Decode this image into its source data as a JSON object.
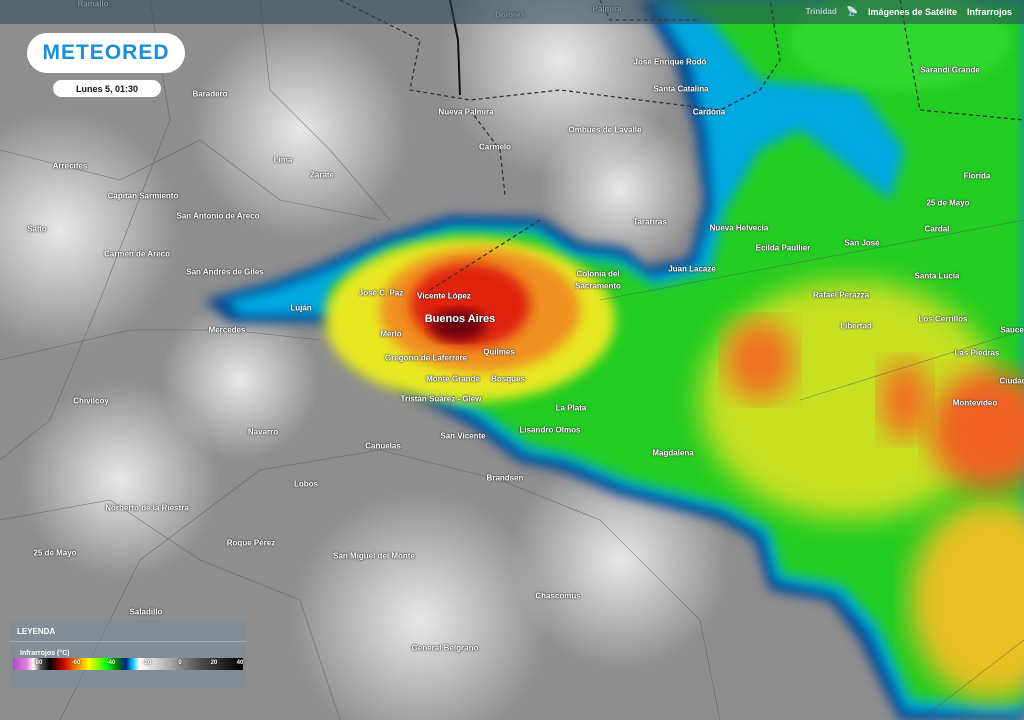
{
  "header": {
    "location_hint": "Trinidad",
    "section": "Imágenes de Satélite",
    "product": "Infrarrojos"
  },
  "brand": {
    "logo": "METEORED"
  },
  "timestamp": "Lunes 5, 01:30",
  "legend": {
    "title": "LEYENDA",
    "scale_label": "Infrarrojos (°C)",
    "ticks": [
      "-80",
      "-60",
      "-40",
      "-20",
      "0",
      "20",
      "40"
    ],
    "colors": [
      "#b04cc0",
      "#000000",
      "#cc0000",
      "#ff8800",
      "#ffff00",
      "#00ff00",
      "#002080",
      "#00c0ff",
      "#ffffff",
      "#000000"
    ]
  },
  "map": {
    "cities": [
      "Ramallo",
      "Dolores",
      "Palmira",
      "José Enrique Rodó",
      "Santa Catalina",
      "Cardona",
      "Baradero",
      "Nueva Palmira",
      "Ombúes de Lavalle",
      "Sarandí Grande",
      "Lima",
      "Carmelo",
      "Zárate",
      "Arrecifes",
      "Capitán Sarmiento",
      "Florida",
      "San Antonio de Areco",
      "25 de Mayo",
      "Tarariras",
      "Nueva Helvecia",
      "Cardal",
      "Salto",
      "Carmen de Areco",
      "Ecilda Paullier",
      "San José",
      "Juan Lacaze",
      "San Andrés de Giles",
      "Colonia del",
      "Sacramento",
      "Santa Lucía",
      "José C. Paz",
      "Vicente López",
      "Luján",
      "Rafael Perazza",
      "Buenos Aires",
      "Mercedes",
      "Libertad",
      "Los Cerrillos",
      "Sauce",
      "Merlo",
      "Quilmes",
      "Las Piedras",
      "Gregorio de Laferrere",
      "Ciudad",
      "Monte Grande",
      "Bosques",
      "Chivilcoy",
      "Tristán Suárez - Glew",
      "Montevideo",
      "La Plata",
      "Navarro",
      "Lisandro Olmos",
      "San Vicente",
      "Cañuelas",
      "Magdalena",
      "Brandsen",
      "Lobos",
      "Norberto de la Riestra",
      "25 de Mayo",
      "Roque Pérez",
      "San Miguel del Monte",
      "Chascomús",
      "Saladillo",
      "General Belgrano"
    ]
  }
}
